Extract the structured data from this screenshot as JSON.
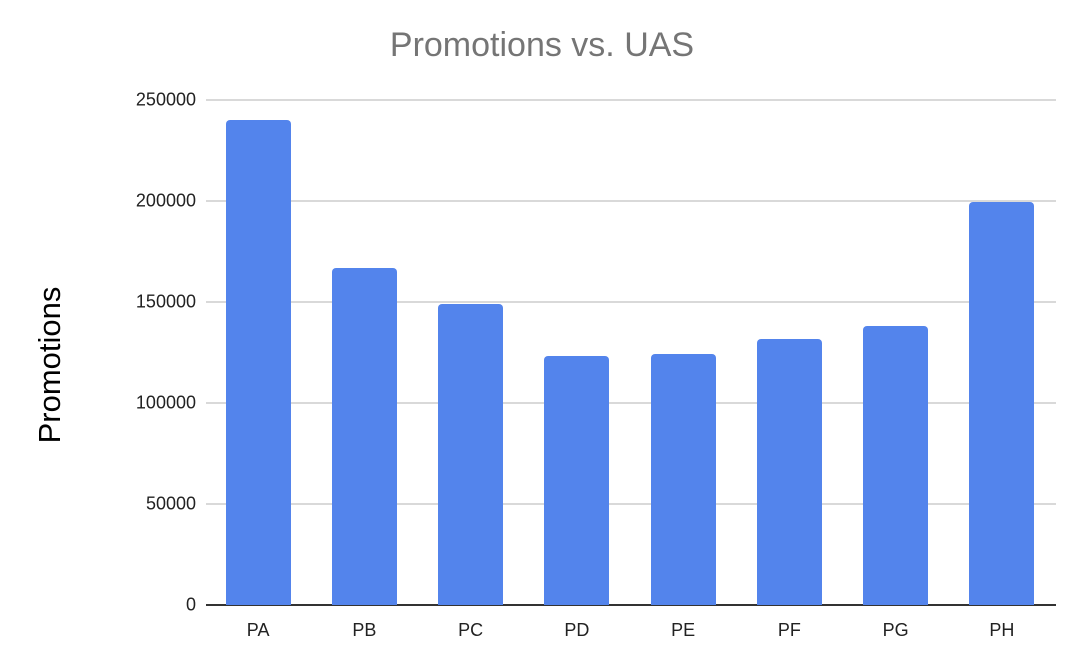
{
  "chart_data": {
    "type": "bar",
    "title": "Promotions vs. UAS",
    "xlabel": "",
    "ylabel": "Promotions",
    "categories": [
      "PA",
      "PB",
      "PC",
      "PD",
      "PE",
      "PF",
      "PG",
      "PH"
    ],
    "values": [
      240000,
      167000,
      149000,
      123500,
      124500,
      131500,
      138000,
      199500
    ],
    "ylim": [
      0,
      250000
    ],
    "yticks": [
      0,
      50000,
      100000,
      150000,
      200000,
      250000
    ],
    "ytick_labels": [
      "0",
      "50000",
      "100000",
      "150000",
      "200000",
      "250000"
    ],
    "grid": true,
    "legend": null,
    "bar_color": "#5384ec"
  }
}
